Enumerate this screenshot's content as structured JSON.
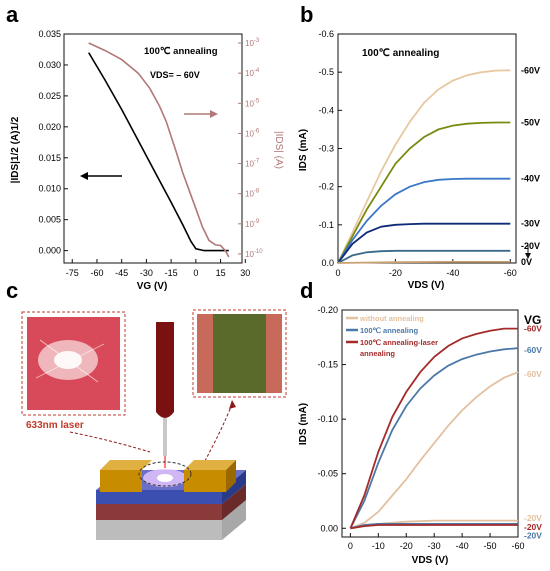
{
  "panel_labels": {
    "a": "a",
    "b": "b",
    "c": "c",
    "d": "d"
  },
  "colors": {
    "axis": "#111111",
    "transfer_sqrt": "#000000",
    "transfer_log": "#b07878",
    "annotation_arrow_left": "#000000",
    "annotation_arrow_right": "#b07878",
    "b_60V": "#e8c8a0",
    "b_50V": "#7a8a10",
    "b_40V": "#3a78c8",
    "b_30V": "#0e2a78",
    "b_20V": "#3a6a8a",
    "b_0V": "#c9a070",
    "d_without": "#e3c1a0",
    "d_annealing": "#4c78a8",
    "d_laser": "#a52a2a",
    "laser_label": "#c0392b",
    "substrate_top": "#8b3a3a",
    "substrate_mid": "#3a4fb0",
    "channel": "#9a5fc0",
    "electrode": "#c88c00",
    "micro_left_bg": "#d84a5a",
    "micro_right_bg": "#5a6a2a",
    "micro_right_edge": "#c86a5a"
  },
  "chart_data": [
    {
      "panel": "a",
      "type": "line",
      "title": "100℃ annealing",
      "subtitle": "VDS= – 60V",
      "xlabel": "VG (V)",
      "ylabel_left": "|IDS|1/2 (A)1/2",
      "ylabel_right": "|IDS| (A)",
      "xlim": [
        -80,
        28
      ],
      "ylim_left": [
        -0.002,
        0.035
      ],
      "ylim_right_log": [
        -10.3,
        -2.7
      ],
      "x_ticks": [
        "-75",
        "-60",
        "-45",
        "-30",
        "-15",
        "0",
        "15",
        "30"
      ],
      "x_tick_values": [
        -75,
        -60,
        -45,
        -30,
        -15,
        0,
        15,
        30
      ],
      "y_ticks_left": [
        "0.000",
        "0.005",
        "0.010",
        "0.015",
        "0.020",
        "0.025",
        "0.030",
        "0.035"
      ],
      "y_tick_left_values": [
        0,
        0.005,
        0.01,
        0.015,
        0.02,
        0.025,
        0.03,
        0.035
      ],
      "y_ticks_right": [
        "10-3",
        "10-4",
        "10-5",
        "10-6",
        "10-7",
        "10-8",
        "10-9",
        "10-10"
      ],
      "y_tick_right_exp": [
        -3,
        -4,
        -5,
        -6,
        -7,
        -8,
        -9,
        -10
      ],
      "series": [
        {
          "axis": "left",
          "color_key": "transfer_sqrt",
          "x": [
            -65,
            -55,
            -45,
            -35,
            -25,
            -15,
            -8,
            -3,
            0,
            5,
            10,
            15,
            20
          ],
          "y": [
            0.032,
            0.0275,
            0.0228,
            0.0178,
            0.0128,
            0.0078,
            0.0042,
            0.0015,
            0.0003,
            0.0,
            0.0,
            0.0,
            0.0
          ]
        },
        {
          "axis": "right",
          "color_key": "transfer_log",
          "x": [
            -65,
            -55,
            -45,
            -35,
            -28,
            -22,
            -18,
            -15,
            -12,
            -8,
            -4,
            0,
            4,
            8,
            12,
            15,
            18,
            20
          ],
          "y_exp": [
            -3.0,
            -3.25,
            -3.55,
            -4.0,
            -4.5,
            -5.1,
            -5.6,
            -6.1,
            -6.6,
            -7.3,
            -7.9,
            -8.5,
            -9.1,
            -9.55,
            -9.7,
            -9.72,
            -9.9,
            -10.1
          ]
        }
      ],
      "annotations": [
        "100℃ annealing",
        "VDS= – 60V"
      ]
    },
    {
      "panel": "b",
      "type": "line",
      "title": "100℃ annealing",
      "xlabel": "VDS (V)",
      "ylabel": "IDS (mA)",
      "xlim": [
        0,
        -62
      ],
      "ylim": [
        0,
        -0.6
      ],
      "x_ticks": [
        "0",
        "-20",
        "-40",
        "-60"
      ],
      "x_tick_values": [
        0,
        -20,
        -40,
        -60
      ],
      "y_ticks": [
        "0.0",
        "-0.1",
        "-0.2",
        "-0.3",
        "-0.4",
        "-0.5",
        "-0.6"
      ],
      "y_tick_values": [
        0,
        -0.1,
        -0.2,
        -0.3,
        -0.4,
        -0.5,
        -0.6
      ],
      "series": [
        {
          "name": "-60V",
          "color_key": "b_60V",
          "x": [
            0,
            -5,
            -10,
            -15,
            -20,
            -25,
            -30,
            -35,
            -40,
            -45,
            -50,
            -55,
            -60
          ],
          "y": [
            0,
            -0.08,
            -0.16,
            -0.24,
            -0.31,
            -0.37,
            -0.42,
            -0.455,
            -0.478,
            -0.492,
            -0.5,
            -0.504,
            -0.505
          ]
        },
        {
          "name": "-50V",
          "color_key": "b_50V",
          "x": [
            0,
            -5,
            -10,
            -15,
            -20,
            -25,
            -30,
            -35,
            -40,
            -45,
            -50,
            -55,
            -60
          ],
          "y": [
            0,
            -0.07,
            -0.14,
            -0.2,
            -0.26,
            -0.3,
            -0.33,
            -0.35,
            -0.36,
            -0.365,
            -0.367,
            -0.368,
            -0.368
          ]
        },
        {
          "name": "-40V",
          "color_key": "b_40V",
          "x": [
            0,
            -5,
            -10,
            -15,
            -20,
            -25,
            -30,
            -35,
            -40,
            -45,
            -50,
            -55,
            -60
          ],
          "y": [
            0,
            -0.06,
            -0.11,
            -0.15,
            -0.18,
            -0.2,
            -0.212,
            -0.218,
            -0.22,
            -0.221,
            -0.221,
            -0.221,
            -0.221
          ]
        },
        {
          "name": "-30V",
          "color_key": "b_30V",
          "x": [
            0,
            -5,
            -10,
            -15,
            -20,
            -25,
            -30,
            -35,
            -40,
            -45,
            -50,
            -55,
            -60
          ],
          "y": [
            0,
            -0.05,
            -0.08,
            -0.095,
            -0.1,
            -0.102,
            -0.103,
            -0.103,
            -0.103,
            -0.103,
            -0.103,
            -0.103,
            -0.103
          ]
        },
        {
          "name": "-20V",
          "color_key": "b_20V",
          "x": [
            0,
            -5,
            -10,
            -15,
            -20,
            -30,
            -40,
            -50,
            -60
          ],
          "y": [
            0,
            -0.02,
            -0.028,
            -0.031,
            -0.032,
            -0.032,
            -0.032,
            -0.032,
            -0.032
          ]
        },
        {
          "name": "0V",
          "color_key": "b_0V",
          "x": [
            0,
            -20,
            -40,
            -60
          ],
          "y": [
            0,
            -0.002,
            -0.003,
            -0.003
          ]
        }
      ],
      "side_labels": [
        "-60V",
        "-50V",
        "-40V",
        "-30V",
        "-20V",
        "0V"
      ]
    },
    {
      "panel": "d",
      "type": "line",
      "xlabel": "VDS (V)",
      "ylabel": "IDS (mA)",
      "legend_title": "VG",
      "xlim": [
        3,
        -60
      ],
      "ylim": [
        0.008,
        -0.2
      ],
      "x_ticks": [
        "0",
        "-10",
        "-20",
        "-30",
        "-40",
        "-50",
        "-60"
      ],
      "x_tick_values": [
        0,
        -10,
        -20,
        -30,
        -40,
        -50,
        -60
      ],
      "y_ticks": [
        "0.00",
        "-0.05",
        "-0.10",
        "-0.15",
        "-0.20"
      ],
      "y_tick_values": [
        0,
        -0.05,
        -0.1,
        -0.15,
        -0.2
      ],
      "legend": [
        "without annealing",
        "100℃ annealing",
        "100℃ annealing-laser annealing"
      ],
      "legend_position": "top-left",
      "series": [
        {
          "name": "without annealing",
          "vg": "-60V",
          "color_key": "d_without",
          "x": [
            0,
            -5,
            -10,
            -15,
            -20,
            -25,
            -30,
            -35,
            -40,
            -45,
            -50,
            -55,
            -60
          ],
          "y": [
            0,
            -0.005,
            -0.015,
            -0.03,
            -0.045,
            -0.062,
            -0.078,
            -0.094,
            -0.108,
            -0.12,
            -0.13,
            -0.138,
            -0.143
          ]
        },
        {
          "name": "100℃ annealing",
          "vg": "-60V",
          "color_key": "d_annealing",
          "x": [
            0,
            -5,
            -10,
            -15,
            -20,
            -25,
            -30,
            -35,
            -40,
            -45,
            -50,
            -55,
            -60
          ],
          "y": [
            0,
            -0.025,
            -0.06,
            -0.09,
            -0.112,
            -0.128,
            -0.14,
            -0.149,
            -0.155,
            -0.159,
            -0.162,
            -0.164,
            -0.165
          ]
        },
        {
          "name": "100℃ annealing-laser annealing",
          "vg": "-60V",
          "color_key": "d_laser",
          "x": [
            0,
            -5,
            -10,
            -15,
            -20,
            -25,
            -30,
            -35,
            -40,
            -45,
            -50,
            -55,
            -60
          ],
          "y": [
            0,
            -0.03,
            -0.07,
            -0.102,
            -0.125,
            -0.143,
            -0.157,
            -0.167,
            -0.174,
            -0.178,
            -0.181,
            -0.183,
            -0.183
          ]
        },
        {
          "name": "without annealing",
          "vg": "-20V",
          "color_key": "d_without",
          "x": [
            0,
            -5,
            -10,
            -20,
            -30,
            -40,
            -50,
            -60
          ],
          "y": [
            0,
            -0.002,
            -0.004,
            -0.006,
            -0.007,
            -0.007,
            -0.007,
            -0.007
          ]
        },
        {
          "name": "100℃ annealing",
          "vg": "-20V",
          "color_key": "d_annealing",
          "x": [
            0,
            -5,
            -10,
            -20,
            -30,
            -40,
            -50,
            -60
          ],
          "y": [
            0,
            -0.003,
            -0.004,
            -0.004,
            -0.004,
            -0.004,
            -0.004,
            -0.004
          ]
        },
        {
          "name": "100℃ annealing-laser annealing",
          "vg": "-20V",
          "color_key": "d_laser",
          "x": [
            0,
            -5,
            -10,
            -20,
            -30,
            -40,
            -50,
            -60
          ],
          "y": [
            0,
            -0.002,
            -0.003,
            -0.003,
            -0.003,
            -0.003,
            -0.003,
            -0.003
          ]
        }
      ],
      "side_labels": [
        {
          "text": "-60V",
          "color_key": "d_laser"
        },
        {
          "text": "-60V",
          "color_key": "d_annealing"
        },
        {
          "text": "-60V",
          "color_key": "d_without"
        },
        {
          "text": "-20V",
          "color_key": "d_without"
        },
        {
          "text": "-20V",
          "color_key": "d_laser"
        },
        {
          "text": "-20V",
          "color_key": "d_annealing"
        }
      ]
    }
  ],
  "panel_c": {
    "laser_label": "633nm laser"
  }
}
